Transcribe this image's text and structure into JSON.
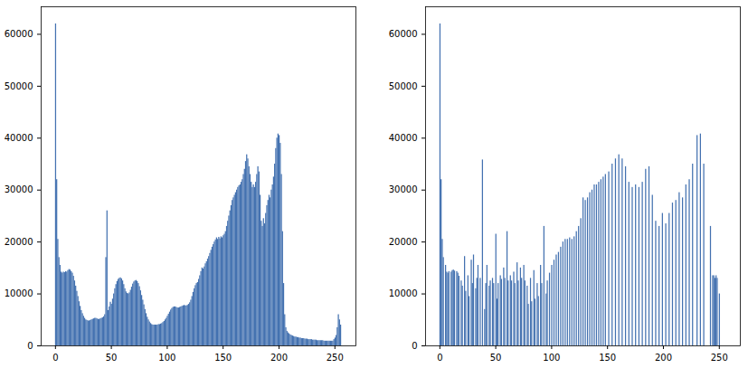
{
  "chart_data": [
    {
      "type": "histogram",
      "color": "#4371b0",
      "grid": false,
      "xlim": [
        -12.8,
        268.8
      ],
      "xticks": [
        0,
        50,
        100,
        150,
        200,
        250
      ],
      "ylim": [
        0,
        65300
      ],
      "yticks": [
        0,
        10000,
        20000,
        30000,
        40000,
        50000,
        60000
      ],
      "bins": [
        0,
        1,
        2,
        3,
        4,
        5,
        6,
        7,
        8,
        9,
        10,
        11,
        12,
        13,
        14,
        15,
        16,
        17,
        18,
        19,
        20,
        21,
        22,
        23,
        24,
        25,
        26,
        27,
        28,
        29,
        30,
        31,
        32,
        33,
        34,
        35,
        36,
        37,
        38,
        39,
        40,
        41,
        42,
        43,
        44,
        45,
        46,
        47,
        48,
        49,
        50,
        51,
        52,
        53,
        54,
        55,
        56,
        57,
        58,
        59,
        60,
        61,
        62,
        63,
        64,
        65,
        66,
        67,
        68,
        69,
        70,
        71,
        72,
        73,
        74,
        75,
        76,
        77,
        78,
        79,
        80,
        81,
        82,
        83,
        84,
        85,
        86,
        87,
        88,
        89,
        90,
        91,
        92,
        93,
        94,
        95,
        96,
        97,
        98,
        99,
        100,
        101,
        102,
        103,
        104,
        105,
        106,
        107,
        108,
        109,
        110,
        111,
        112,
        113,
        114,
        115,
        116,
        117,
        118,
        119,
        120,
        121,
        122,
        123,
        124,
        125,
        126,
        127,
        128,
        129,
        130,
        131,
        132,
        133,
        134,
        135,
        136,
        137,
        138,
        139,
        140,
        141,
        142,
        143,
        144,
        145,
        146,
        147,
        148,
        149,
        150,
        151,
        152,
        153,
        154,
        155,
        156,
        157,
        158,
        159,
        160,
        161,
        162,
        163,
        164,
        165,
        166,
        167,
        168,
        169,
        170,
        171,
        172,
        173,
        174,
        175,
        176,
        177,
        178,
        179,
        180,
        181,
        182,
        183,
        184,
        185,
        186,
        187,
        188,
        189,
        190,
        191,
        192,
        193,
        194,
        195,
        196,
        197,
        198,
        199,
        200,
        201,
        202,
        203,
        204,
        205,
        206,
        207,
        208,
        209,
        210,
        211,
        212,
        213,
        214,
        215,
        216,
        217,
        218,
        219,
        220,
        221,
        222,
        223,
        224,
        225,
        226,
        227,
        228,
        229,
        230,
        231,
        232,
        233,
        234,
        235,
        236,
        237,
        238,
        239,
        240,
        241,
        242,
        243,
        244,
        245,
        246,
        247,
        248,
        249,
        250,
        251,
        252,
        253,
        254,
        255,
        256
      ],
      "counts": [
        62000,
        32000,
        20500,
        17000,
        15500,
        14200,
        14000,
        14200,
        14100,
        14300,
        14200,
        14500,
        14700,
        14600,
        14300,
        14000,
        13400,
        12500,
        11500,
        10500,
        9500,
        8500,
        7600,
        6800,
        6200,
        5700,
        5300,
        5000,
        4900,
        4800,
        4800,
        4900,
        5000,
        5100,
        5200,
        5300,
        5300,
        5200,
        5100,
        5100,
        5200,
        5300,
        5400,
        5600,
        6000,
        17000,
        26000,
        6800,
        7500,
        8400,
        8000,
        9000,
        10000,
        11000,
        11800,
        12400,
        12800,
        13000,
        13100,
        12900,
        12500,
        11800,
        11000,
        10400,
        10100,
        10000,
        10200,
        10700,
        11300,
        11900,
        12300,
        12500,
        12600,
        12400,
        12000,
        11400,
        10600,
        9700,
        8800,
        7900,
        7000,
        6200,
        5500,
        5000,
        4600,
        4300,
        4100,
        4000,
        4000,
        4000,
        4000,
        4000,
        4100,
        4100,
        4200,
        4300,
        4500,
        4700,
        5000,
        5300,
        5700,
        6100,
        6500,
        6900,
        7200,
        7400,
        7500,
        7500,
        7400,
        7300,
        7300,
        7400,
        7500,
        7600,
        7700,
        7800,
        7700,
        7700,
        7800,
        8000,
        8300,
        8800,
        9500,
        10300,
        11000,
        11600,
        12000,
        12200,
        12800,
        13500,
        14300,
        15000,
        14800,
        15200,
        15800,
        16200,
        16700,
        17200,
        17800,
        18400,
        19000,
        19500,
        20000,
        20400,
        20800,
        20500,
        20900,
        20600,
        21000,
        20800,
        21200,
        21500,
        22000,
        23000,
        24000,
        25000,
        26000,
        27000,
        28000,
        28500,
        29000,
        29500,
        30000,
        30500,
        30800,
        31000,
        31500,
        32000,
        33000,
        34000,
        35500,
        36800,
        36000,
        34500,
        33000,
        31500,
        30500,
        31000,
        30500,
        31500,
        33000,
        34500,
        33500,
        29000,
        24000,
        23000,
        24500,
        23500,
        25500,
        27000,
        28000,
        29000,
        28500,
        30000,
        31000,
        32500,
        35000,
        38000,
        40000,
        40800,
        40500,
        39000,
        33000,
        22000,
        12000,
        6000,
        3500,
        2800,
        2500,
        2300,
        2100,
        2000,
        1900,
        1800,
        1700,
        1700,
        1600,
        1600,
        1500,
        1500,
        1400,
        1400,
        1400,
        1300,
        1300,
        1300,
        1200,
        1200,
        1200,
        1200,
        1100,
        1100,
        1100,
        1100,
        1000,
        1000,
        1000,
        1000,
        1000,
        1000,
        900,
        900,
        900,
        900,
        900,
        900,
        900,
        900,
        900,
        1200,
        1500,
        2000,
        3500,
        6000,
        5000,
        4000
      ]
    },
    {
      "type": "histogram",
      "color": "#4371b0",
      "grid": false,
      "xlim": [
        -12.8,
        268.8
      ],
      "xticks": [
        0,
        50,
        100,
        150,
        200,
        250
      ],
      "ylim": [
        0,
        65300
      ],
      "yticks": [
        0,
        10000,
        20000,
        30000,
        40000,
        50000,
        60000
      ],
      "bins": [
        0,
        1,
        2,
        3,
        4,
        5,
        6,
        7,
        8,
        9,
        10,
        11,
        12,
        13,
        14,
        15,
        16,
        17,
        18,
        19,
        20,
        21,
        22,
        23,
        24,
        25,
        26,
        27,
        28,
        29,
        30,
        31,
        32,
        33,
        34,
        35,
        36,
        37,
        38,
        39,
        40,
        41,
        42,
        43,
        44,
        45,
        46,
        47,
        48,
        49,
        50,
        51,
        52,
        53,
        54,
        55,
        56,
        57,
        58,
        59,
        60,
        61,
        62,
        63,
        64,
        65,
        66,
        67,
        68,
        69,
        70,
        71,
        72,
        73,
        74,
        75,
        76,
        77,
        78,
        79,
        80,
        81,
        82,
        83,
        84,
        85,
        86,
        87,
        88,
        89,
        90,
        91,
        92,
        93,
        94,
        95,
        96,
        97,
        98,
        99,
        100,
        101,
        102,
        103,
        104,
        105,
        106,
        107,
        108,
        109,
        110,
        111,
        112,
        113,
        114,
        115,
        116,
        117,
        118,
        119,
        120,
        121,
        122,
        123,
        124,
        125,
        126,
        127,
        128,
        129,
        130,
        131,
        132,
        133,
        134,
        135,
        136,
        137,
        138,
        139,
        140,
        141,
        142,
        143,
        144,
        145,
        146,
        147,
        148,
        149,
        150,
        151,
        152,
        153,
        154,
        155,
        156,
        157,
        158,
        159,
        160,
        161,
        162,
        163,
        164,
        165,
        166,
        167,
        168,
        169,
        170,
        171,
        172,
        173,
        174,
        175,
        176,
        177,
        178,
        179,
        180,
        181,
        182,
        183,
        184,
        185,
        186,
        187,
        188,
        189,
        190,
        191,
        192,
        193,
        194,
        195,
        196,
        197,
        198,
        199,
        200,
        201,
        202,
        203,
        204,
        205,
        206,
        207,
        208,
        209,
        210,
        211,
        212,
        213,
        214,
        215,
        216,
        217,
        218,
        219,
        220,
        221,
        222,
        223,
        224,
        225,
        226,
        227,
        228,
        229,
        230,
        231,
        232,
        233,
        234,
        235,
        236,
        237,
        238,
        239,
        240,
        241,
        242,
        243,
        244,
        245,
        246,
        247,
        248,
        249,
        250,
        251,
        252,
        253,
        254,
        255,
        256
      ],
      "counts": [
        62000,
        32000,
        20500,
        17000,
        0,
        15500,
        14200,
        14000,
        14300,
        0,
        14200,
        14500,
        14600,
        14400,
        0,
        14300,
        14000,
        13400,
        0,
        12500,
        11500,
        0,
        17200,
        10500,
        0,
        13500,
        9500,
        0,
        16500,
        12000,
        17500,
        0,
        11000,
        13000,
        15500,
        0,
        13000,
        0,
        35800,
        0,
        7000,
        12000,
        15500,
        0,
        11500,
        12500,
        0,
        13000,
        12000,
        0,
        21500,
        9000,
        12000,
        0,
        13500,
        12800,
        0,
        15000,
        13000,
        0,
        22000,
        12500,
        0,
        13500,
        12500,
        0,
        14200,
        12000,
        0,
        16000,
        12500,
        0,
        15000,
        13000,
        0,
        15500,
        12500,
        0,
        11500,
        8000,
        0,
        13000,
        8500,
        0,
        14500,
        9000,
        0,
        12000,
        9500,
        0,
        15500,
        12000,
        0,
        23000,
        0,
        10000,
        12500,
        0,
        14000,
        0,
        15500,
        0,
        16500,
        0,
        17500,
        0,
        18000,
        0,
        19000,
        0,
        20000,
        0,
        20500,
        0,
        20500,
        0,
        20800,
        0,
        20500,
        0,
        21000,
        0,
        22000,
        0,
        23000,
        0,
        24500,
        0,
        28500,
        0,
        28000,
        0,
        28500,
        0,
        29500,
        0,
        30000,
        0,
        31000,
        0,
        31000,
        0,
        31500,
        0,
        32000,
        0,
        32500,
        0,
        33000,
        0,
        0,
        33500,
        0,
        0,
        35000,
        0,
        0,
        36000,
        0,
        0,
        36800,
        0,
        0,
        36000,
        0,
        0,
        34500,
        0,
        0,
        31500,
        0,
        0,
        30500,
        0,
        0,
        31000,
        0,
        0,
        30500,
        0,
        0,
        31500,
        0,
        0,
        34000,
        0,
        0,
        34500,
        0,
        0,
        29000,
        0,
        0,
        24000,
        0,
        0,
        23000,
        0,
        0,
        25500,
        0,
        0,
        23500,
        0,
        0,
        25500,
        0,
        0,
        27500,
        0,
        0,
        28000,
        0,
        0,
        29500,
        0,
        0,
        28500,
        0,
        0,
        31000,
        0,
        0,
        32000,
        0,
        0,
        35000,
        0,
        0,
        0,
        40500,
        0,
        0,
        40800,
        0,
        0,
        35000,
        0,
        0,
        0,
        0,
        0,
        23000,
        0,
        13500,
        13500,
        13000,
        13500,
        13000,
        0,
        10000,
        0,
        0,
        0,
        0,
        0
      ]
    }
  ]
}
